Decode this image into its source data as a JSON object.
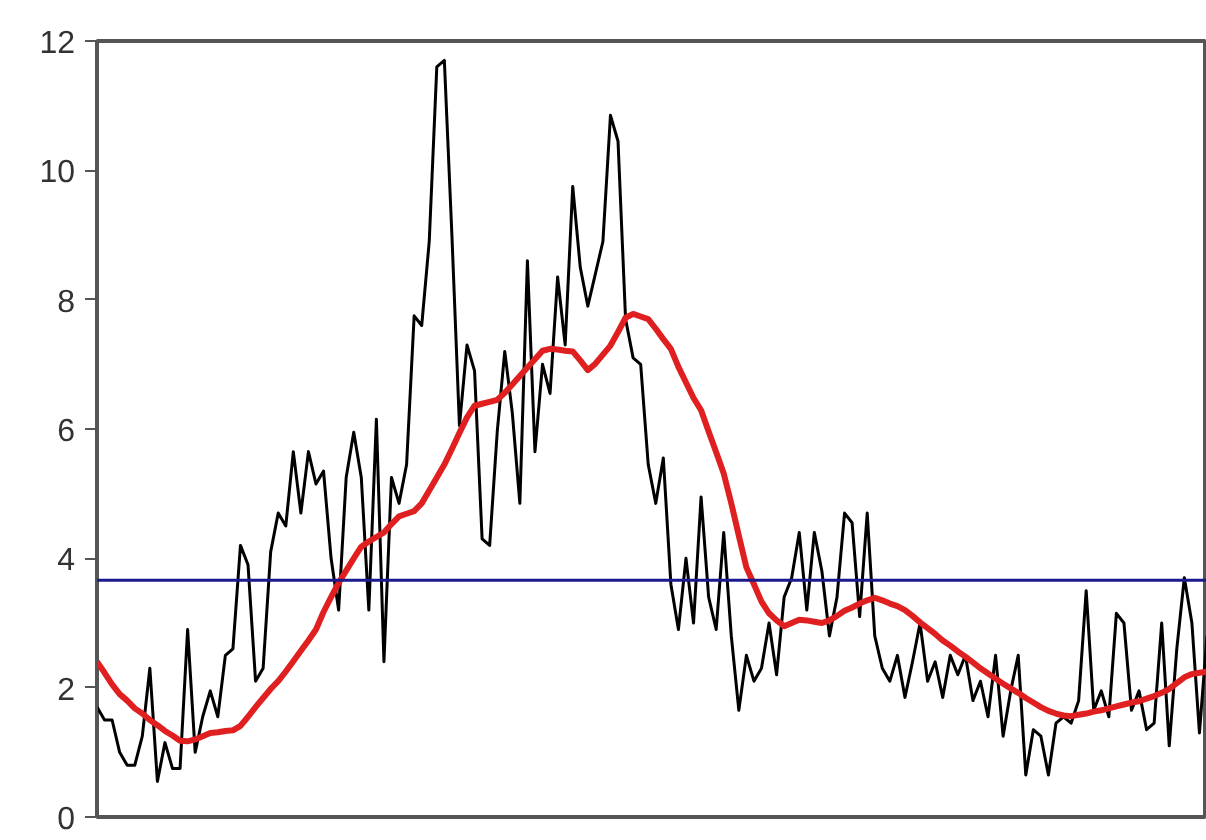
{
  "chart_data": {
    "type": "line",
    "categories": [
      null,
      null,
      null,
      null,
      null,
      null,
      null,
      null,
      null,
      null,
      null,
      null,
      null,
      null,
      null,
      null,
      null,
      null,
      null,
      null,
      null,
      null,
      null,
      null,
      null,
      null,
      null,
      null,
      null,
      null,
      null,
      null,
      null,
      null,
      null,
      null,
      null,
      null,
      null,
      null,
      null,
      null,
      null,
      null,
      null,
      null,
      null,
      null,
      null,
      null,
      null,
      null,
      null,
      null,
      null,
      null,
      null,
      null,
      null,
      null,
      null,
      null,
      null,
      null,
      null,
      null,
      null,
      null,
      null,
      null,
      null,
      null,
      null,
      null,
      null,
      null,
      null,
      null,
      null,
      null,
      null,
      null,
      null,
      null,
      null,
      null,
      null,
      null,
      null,
      null,
      null,
      null,
      null,
      null,
      null,
      null,
      null,
      null,
      null,
      null,
      null,
      null,
      null,
      null,
      null,
      null,
      null,
      null,
      null,
      null,
      null,
      null,
      null,
      null,
      null,
      null,
      null,
      null,
      null,
      null,
      null,
      null,
      null,
      null,
      null,
      null,
      null,
      null,
      null,
      null,
      null,
      null,
      null,
      null,
      null,
      null,
      null,
      null,
      null,
      null,
      null,
      null,
      null,
      null,
      null,
      null,
      null,
      null
    ],
    "ylim": [
      0,
      12
    ],
    "yticks": [
      0,
      2,
      4,
      6,
      8,
      10,
      12
    ],
    "tick_labels": "y",
    "series": [
      {
        "color": "#000000",
        "values": [
          1.7,
          1.5,
          1.5,
          1.0,
          0.8,
          0.8,
          1.25,
          2.3,
          0.55,
          1.15,
          0.75,
          0.75,
          2.9,
          1.0,
          1.55,
          1.95,
          1.55,
          2.5,
          2.6,
          4.2,
          3.9,
          2.1,
          2.3,
          4.1,
          4.7,
          4.5,
          5.65,
          4.7,
          5.65,
          5.15,
          5.35,
          4.0,
          3.2,
          5.25,
          5.95,
          5.25,
          3.2,
          6.15,
          2.4,
          5.25,
          4.85,
          5.45,
          7.75,
          7.6,
          8.9,
          11.6,
          11.7,
          9.0,
          6.05,
          7.3,
          6.9,
          4.3,
          4.2,
          5.95,
          7.2,
          6.25,
          4.85,
          8.6,
          5.65,
          7.0,
          6.55,
          8.35,
          7.3,
          9.75,
          8.5,
          7.9,
          8.4,
          8.9,
          10.85,
          10.45,
          7.7,
          7.1,
          7.0,
          5.45,
          4.85,
          5.55,
          3.6,
          2.9,
          4.0,
          3.0,
          4.95,
          3.4,
          2.9,
          4.4,
          2.8,
          1.65,
          2.5,
          2.1,
          2.3,
          3.0,
          2.2,
          3.4,
          3.7,
          4.4,
          3.2,
          4.4,
          3.8,
          2.8,
          3.4,
          4.7,
          4.55,
          3.1,
          4.7,
          2.8,
          2.3,
          2.1,
          2.5,
          1.85,
          2.4,
          3.0,
          2.1,
          2.4,
          1.85,
          2.5,
          2.2,
          2.5,
          1.8,
          2.1,
          1.55,
          2.5,
          1.25,
          1.95,
          2.5,
          0.65,
          1.35,
          1.25,
          0.65,
          1.45,
          1.55,
          1.45,
          1.8,
          3.5,
          1.65,
          1.95,
          1.55,
          3.15,
          3.0,
          1.65,
          1.95,
          1.35,
          1.45,
          3.0,
          1.1,
          2.6,
          3.7,
          3.0,
          1.3,
          2.8
        ]
      },
      {
        "color": "#e02020",
        "values": [
          2.4,
          2.23,
          2.05,
          1.9,
          1.8,
          1.68,
          1.6,
          1.5,
          1.42,
          1.33,
          1.26,
          1.18,
          1.17,
          1.2,
          1.25,
          1.3,
          1.31,
          1.33,
          1.34,
          1.41,
          1.55,
          1.7,
          1.84,
          1.98,
          2.1,
          2.25,
          2.41,
          2.57,
          2.73,
          2.9,
          3.17,
          3.4,
          3.62,
          3.81,
          4.0,
          4.18,
          4.26,
          4.33,
          4.4,
          4.53,
          4.65,
          4.69,
          4.73,
          4.85,
          5.05,
          5.25,
          5.45,
          5.69,
          5.94,
          6.18,
          6.36,
          6.39,
          6.42,
          6.45,
          6.56,
          6.69,
          6.82,
          6.95,
          7.08,
          7.21,
          7.24,
          7.23,
          7.21,
          7.2,
          7.06,
          6.91,
          7.01,
          7.15,
          7.29,
          7.5,
          7.72,
          7.78,
          7.74,
          7.7,
          7.55,
          7.39,
          7.24,
          6.96,
          6.72,
          6.48,
          6.29,
          5.96,
          5.64,
          5.31,
          4.85,
          4.35,
          3.86,
          3.6,
          3.33,
          3.15,
          3.04,
          2.95,
          3.0,
          3.05,
          3.04,
          3.02,
          3.0,
          3.04,
          3.11,
          3.19,
          3.24,
          3.3,
          3.35,
          3.39,
          3.35,
          3.3,
          3.26,
          3.2,
          3.11,
          3.01,
          2.92,
          2.83,
          2.73,
          2.65,
          2.56,
          2.48,
          2.39,
          2.3,
          2.22,
          2.14,
          2.06,
          1.99,
          1.92,
          1.84,
          1.77,
          1.7,
          1.64,
          1.6,
          1.57,
          1.56,
          1.58,
          1.6,
          1.63,
          1.65,
          1.68,
          1.71,
          1.74,
          1.77,
          1.79,
          1.83,
          1.87,
          1.92,
          1.98,
          2.07,
          2.16,
          2.21,
          2.23,
          2.25
        ]
      }
    ],
    "ref_lines": [
      {
        "axis": "y",
        "value": 3.66,
        "color": "#1a1a8c"
      }
    ]
  }
}
